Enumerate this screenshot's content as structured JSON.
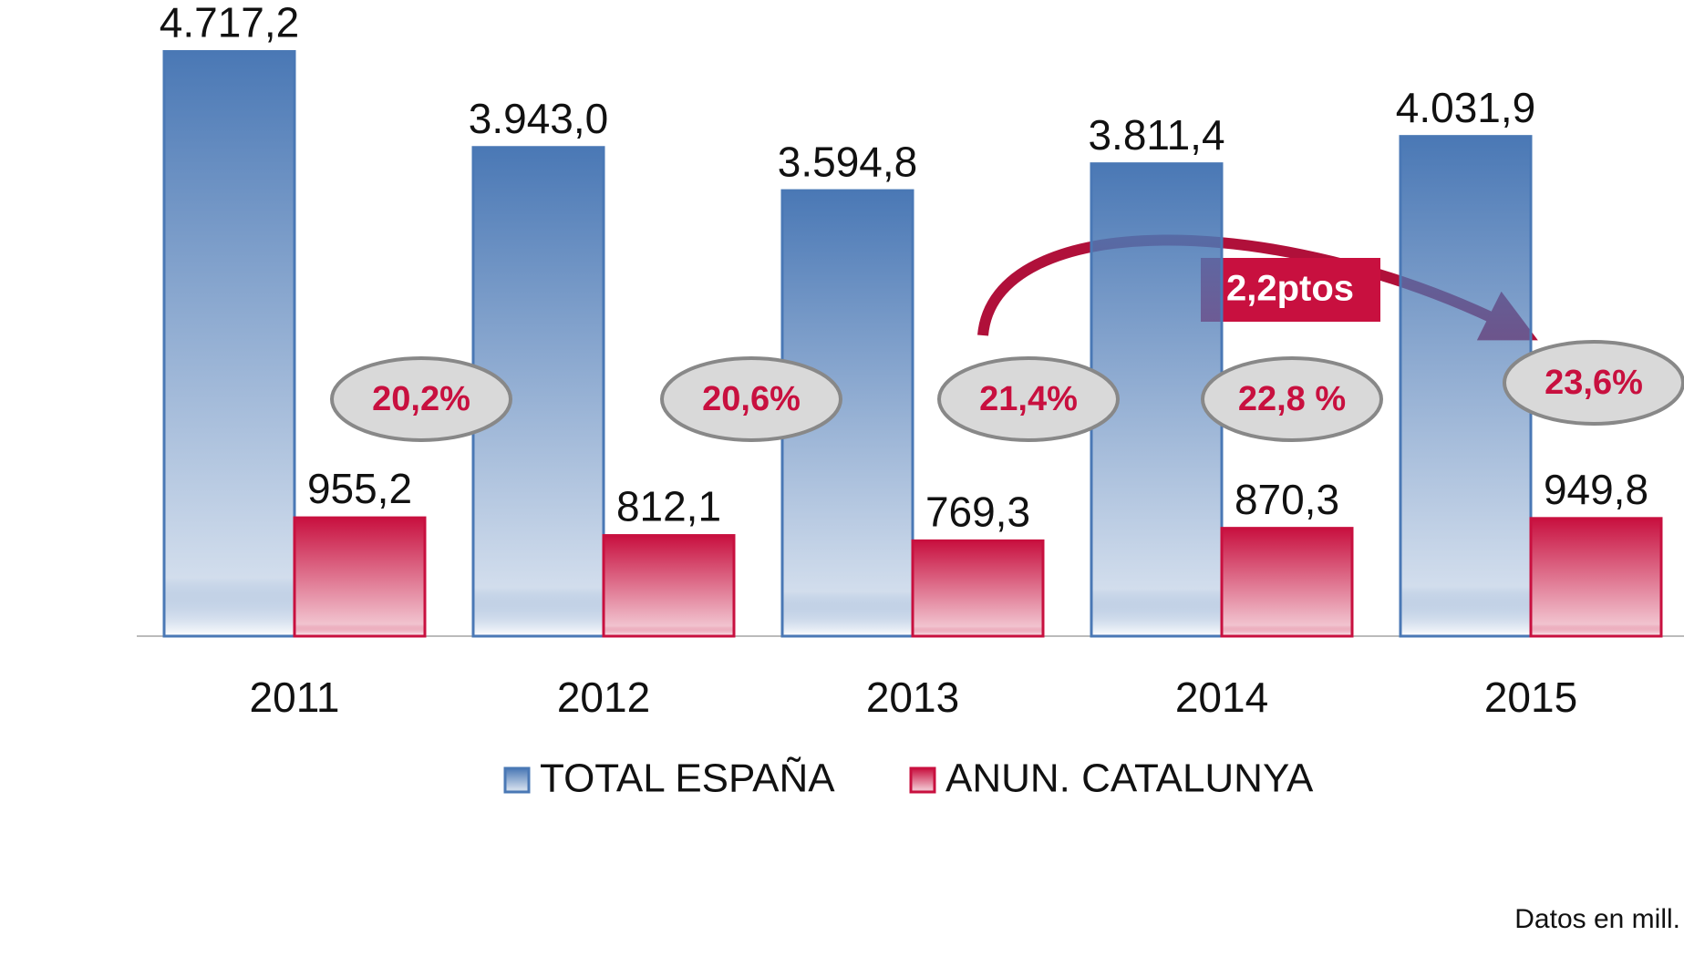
{
  "chart_data": {
    "type": "bar",
    "categories": [
      "2011",
      "2012",
      "2013",
      "2014",
      "2015"
    ],
    "series": [
      {
        "name": "TOTAL ESPAÑA",
        "color": "#4a78b5",
        "values": [
          4717.2,
          3943.0,
          3594.8,
          3811.4,
          4031.9
        ],
        "value_labels": [
          "4.717,2",
          "3.943,0",
          "3.594,8",
          "3.811,4",
          "4.031,9"
        ]
      },
      {
        "name": "ANUN. CATALUNYA",
        "color": "#c8103f",
        "values": [
          955.2,
          812.1,
          769.3,
          870.3,
          949.8
        ],
        "value_labels": [
          "955,2",
          "812,1",
          "769,3",
          "870,3",
          "949,8"
        ]
      }
    ],
    "ylim": [
      0,
      5000
    ],
    "annotations": [
      "20,2%",
      "20,6%",
      "21,4%",
      "22,8 %",
      "23,6%"
    ],
    "arrow_label": "2,2ptos",
    "note": "Datos en mill."
  }
}
